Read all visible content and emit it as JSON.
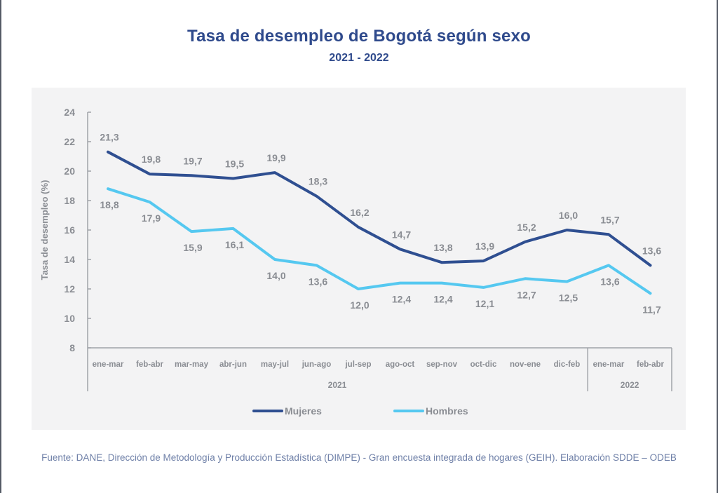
{
  "header": {
    "title": "Tasa de desempleo de Bogotá según sexo",
    "subtitle": "2021 - 2022"
  },
  "footer": {
    "source": "Fuente: DANE, Dirección de Metodología y Producción Estadística (DIMPE) - Gran encuesta integrada de hogares (GEIH). Elaboración SDDE – ODEB"
  },
  "colors": {
    "mujeres": "#2f4f91",
    "hombres": "#55c8f0",
    "axis": "#a0a3a8",
    "label": "#8a8d93",
    "panel": "#f3f3f4",
    "title": "#2f4a8c"
  },
  "chart_data": {
    "type": "line",
    "title": "Tasa de desempleo de Bogotá según sexo",
    "subtitle": "2021 - 2022",
    "xlabel": "",
    "ylabel": "Tasa de desempleo (%)",
    "ylim": [
      8,
      24
    ],
    "yticks": [
      8,
      10,
      12,
      14,
      16,
      18,
      20,
      22,
      24
    ],
    "grid": false,
    "categories": [
      "ene-mar",
      "feb-abr",
      "mar-may",
      "abr-jun",
      "may-jul",
      "jun-ago",
      "jul-sep",
      "ago-oct",
      "sep-nov",
      "oct-dic",
      "nov-ene",
      "dic-feb",
      "ene-mar",
      "feb-abr"
    ],
    "category_groups": [
      {
        "label": "2021",
        "count": 12
      },
      {
        "label": "2022",
        "count": 2
      }
    ],
    "series": [
      {
        "name": "Mujeres",
        "values": [
          21.3,
          19.8,
          19.7,
          19.5,
          19.9,
          18.3,
          16.2,
          14.7,
          13.8,
          13.9,
          15.2,
          16.0,
          15.7,
          13.6
        ],
        "labels": [
          "21,3",
          "19,8",
          "19,7",
          "19,5",
          "19,9",
          "18,3",
          "16,2",
          "14,7",
          "13,8",
          "13,9",
          "15,2",
          "16,0",
          "15,7",
          "13,6"
        ],
        "label_position": "above"
      },
      {
        "name": "Hombres",
        "values": [
          18.8,
          17.9,
          15.9,
          16.1,
          14.0,
          13.6,
          12.0,
          12.4,
          12.4,
          12.1,
          12.7,
          12.5,
          13.6,
          11.7
        ],
        "labels": [
          "18,8",
          "17,9",
          "15,9",
          "16,1",
          "14,0",
          "13,6",
          "12,0",
          "12,4",
          "12,4",
          "12,1",
          "12,7",
          "12,5",
          "13,6",
          "11,7"
        ],
        "label_position": "below"
      }
    ],
    "legend": {
      "position": "bottom",
      "entries": [
        "Mujeres",
        "Hombres"
      ]
    }
  }
}
